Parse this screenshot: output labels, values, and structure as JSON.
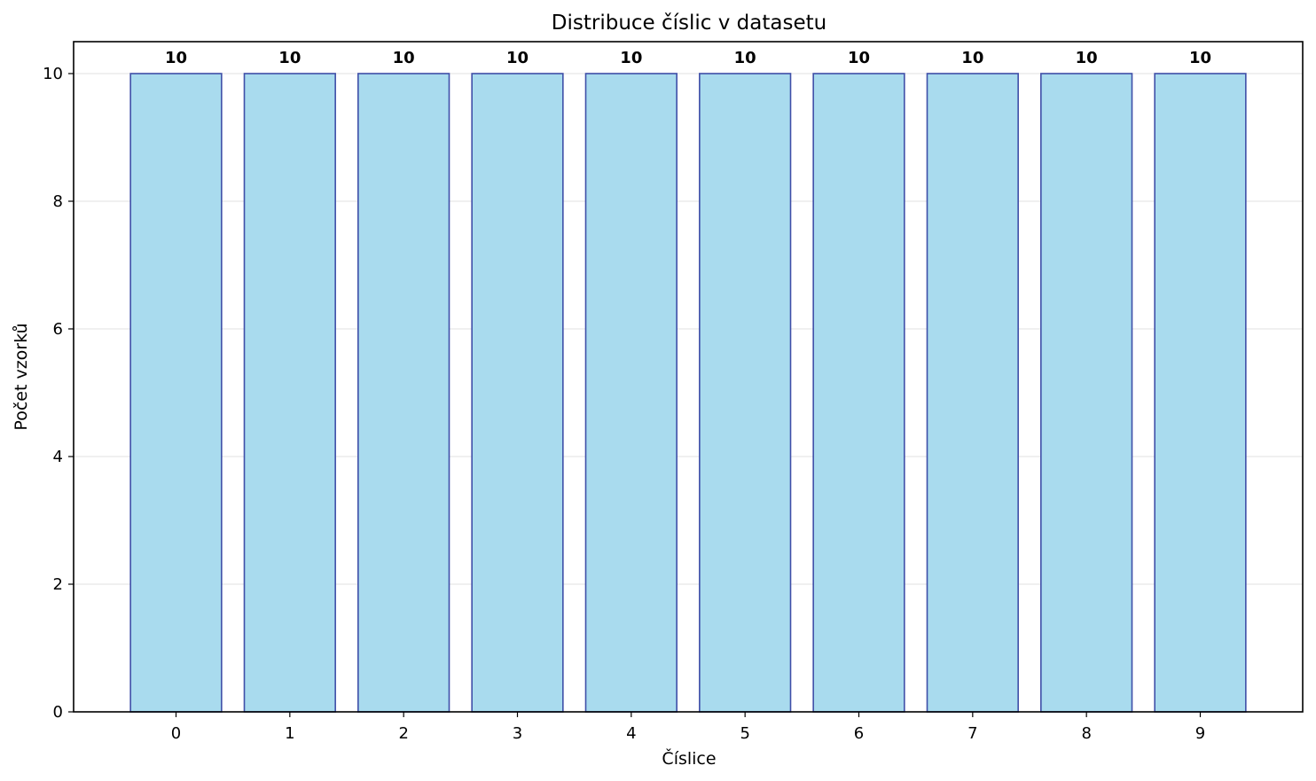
{
  "chart_data": {
    "type": "bar",
    "title": "Distribuce číslic v datasetu",
    "xlabel": "Číslice",
    "ylabel": "Počet vzorků",
    "categories": [
      "0",
      "1",
      "2",
      "3",
      "4",
      "5",
      "6",
      "7",
      "8",
      "9"
    ],
    "values": [
      10,
      10,
      10,
      10,
      10,
      10,
      10,
      10,
      10,
      10
    ],
    "data_labels": [
      "10",
      "10",
      "10",
      "10",
      "10",
      "10",
      "10",
      "10",
      "10",
      "10"
    ],
    "ylim": [
      0,
      10.5
    ],
    "yticks": [
      "0",
      "2",
      "4",
      "6",
      "8",
      "10"
    ],
    "grid": "horizontal",
    "legend": "none",
    "colors": {
      "bar_fill": "#a9dbee",
      "bar_edge": "#3f4fa8",
      "grid": "#e6e6e6",
      "axes": "#000000"
    }
  }
}
